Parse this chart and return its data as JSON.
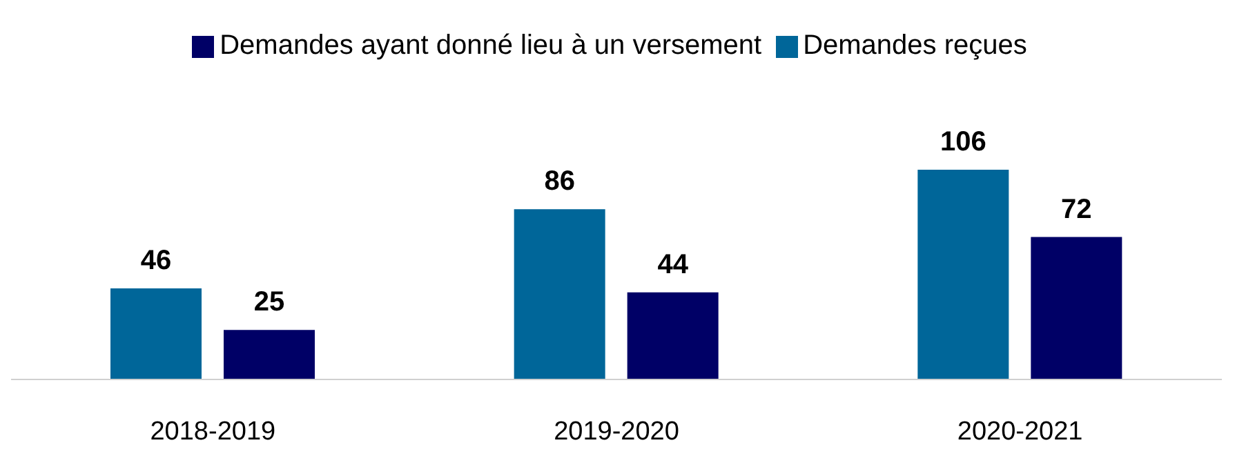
{
  "chart_data": {
    "type": "bar",
    "categories": [
      "2018-2019",
      "2019-2020",
      "2020-2021"
    ],
    "series": [
      {
        "name": "Demandes reçues",
        "color": "#006699",
        "values": [
          46,
          86,
          106
        ]
      },
      {
        "name": "Demandes ayant donné lieu à un versement",
        "color": "#000066",
        "values": [
          25,
          44,
          72
        ]
      }
    ],
    "data_labels": true,
    "legend": "top",
    "grid": false
  }
}
